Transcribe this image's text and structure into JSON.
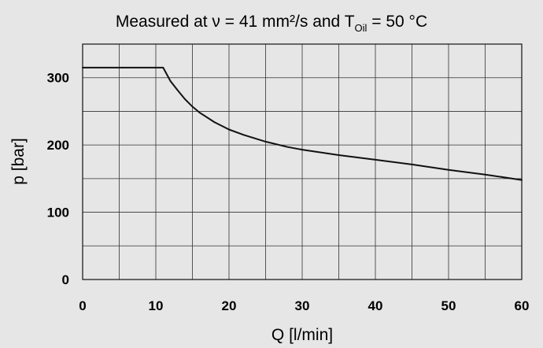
{
  "chart_data": {
    "type": "line",
    "title_prefix": "Measured at ν = 41 mm²/s and T",
    "title_subscript": "Oil",
    "title_suffix": " = 50 °C",
    "xlabel": "Q [l/min]",
    "ylabel": "p [bar]",
    "xlim": [
      0,
      60
    ],
    "ylim": [
      0,
      350
    ],
    "x_ticks": [
      0,
      10,
      20,
      30,
      40,
      50,
      60
    ],
    "y_ticks": [
      0,
      100,
      200,
      300
    ],
    "x_gridlines": [
      0,
      5,
      10,
      15,
      20,
      25,
      30,
      35,
      40,
      45,
      50,
      55,
      60
    ],
    "y_gridlines": [
      0,
      50,
      100,
      150,
      200,
      250,
      300,
      350
    ],
    "grid": true,
    "line_color": "#111111",
    "background_color": "#e6e6e6",
    "series": [
      {
        "x": [
          0,
          11,
          11.3,
          12,
          13,
          14,
          15,
          16,
          18,
          20,
          22,
          25,
          28,
          30,
          35,
          40,
          45,
          50,
          55,
          60
        ],
        "y": [
          315,
          315,
          309,
          295,
          281,
          268,
          257,
          248,
          234,
          223,
          215,
          205,
          197,
          193,
          185,
          178,
          171,
          163,
          156,
          148
        ]
      }
    ]
  }
}
